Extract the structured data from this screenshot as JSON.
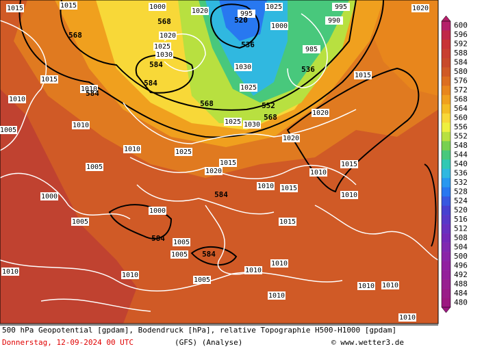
{
  "map": {
    "geopotential_labels": [
      568,
      568,
      584,
      584,
      584,
      520,
      536,
      536,
      568,
      552,
      568,
      584,
      584,
      584
    ],
    "pressure_labels": [
      1015,
      1015,
      1000,
      1020,
      995,
      1025,
      1000,
      995,
      990,
      1020,
      1020,
      1025,
      1030,
      985,
      1030,
      1025,
      1015,
      1010,
      1010,
      1015,
      1020,
      1005,
      1010,
      1025,
      1030,
      1010,
      1025,
      1020,
      1015,
      1005,
      1000,
      1010,
      1015,
      1020,
      1010,
      1015,
      1010,
      1005,
      1005,
      1005,
      1000,
      1015,
      1010,
      1010,
      1010,
      1005,
      1010,
      1010,
      1010,
      1010,
      1010
    ]
  },
  "legend": {
    "ticks": [
      600,
      596,
      592,
      588,
      584,
      580,
      576,
      572,
      568,
      564,
      560,
      556,
      552,
      548,
      544,
      540,
      536,
      532,
      528,
      524,
      520,
      516,
      512,
      508,
      504,
      500,
      496,
      492,
      488,
      484,
      480
    ],
    "colors": [
      "#b4206a",
      "#c02848",
      "#c83434",
      "#c84030",
      "#c84a2a",
      "#d05a26",
      "#dc6e20",
      "#e8861c",
      "#f0a01e",
      "#f4bc24",
      "#f8d838",
      "#eef040",
      "#b8e040",
      "#78d050",
      "#48c87c",
      "#30c8b4",
      "#30b8e0",
      "#2898f0",
      "#2878f0",
      "#3858e0",
      "#4840d0",
      "#5838c8",
      "#6830c0",
      "#7428b8",
      "#8028b0",
      "#8a24a8",
      "#9020a0",
      "#94209a",
      "#982090",
      "#9a1c88",
      "#9c1880"
    ]
  },
  "footer": {
    "description": "500 hPa Geopotential [gpdam], Bodendruck [hPa], relative Topographie H500-H1000 [gpdam]",
    "date": "Donnerstag, 12-09-2024  00 UTC",
    "model": "(GFS)  (Analyse)",
    "credit": "© www.wetter3.de"
  }
}
